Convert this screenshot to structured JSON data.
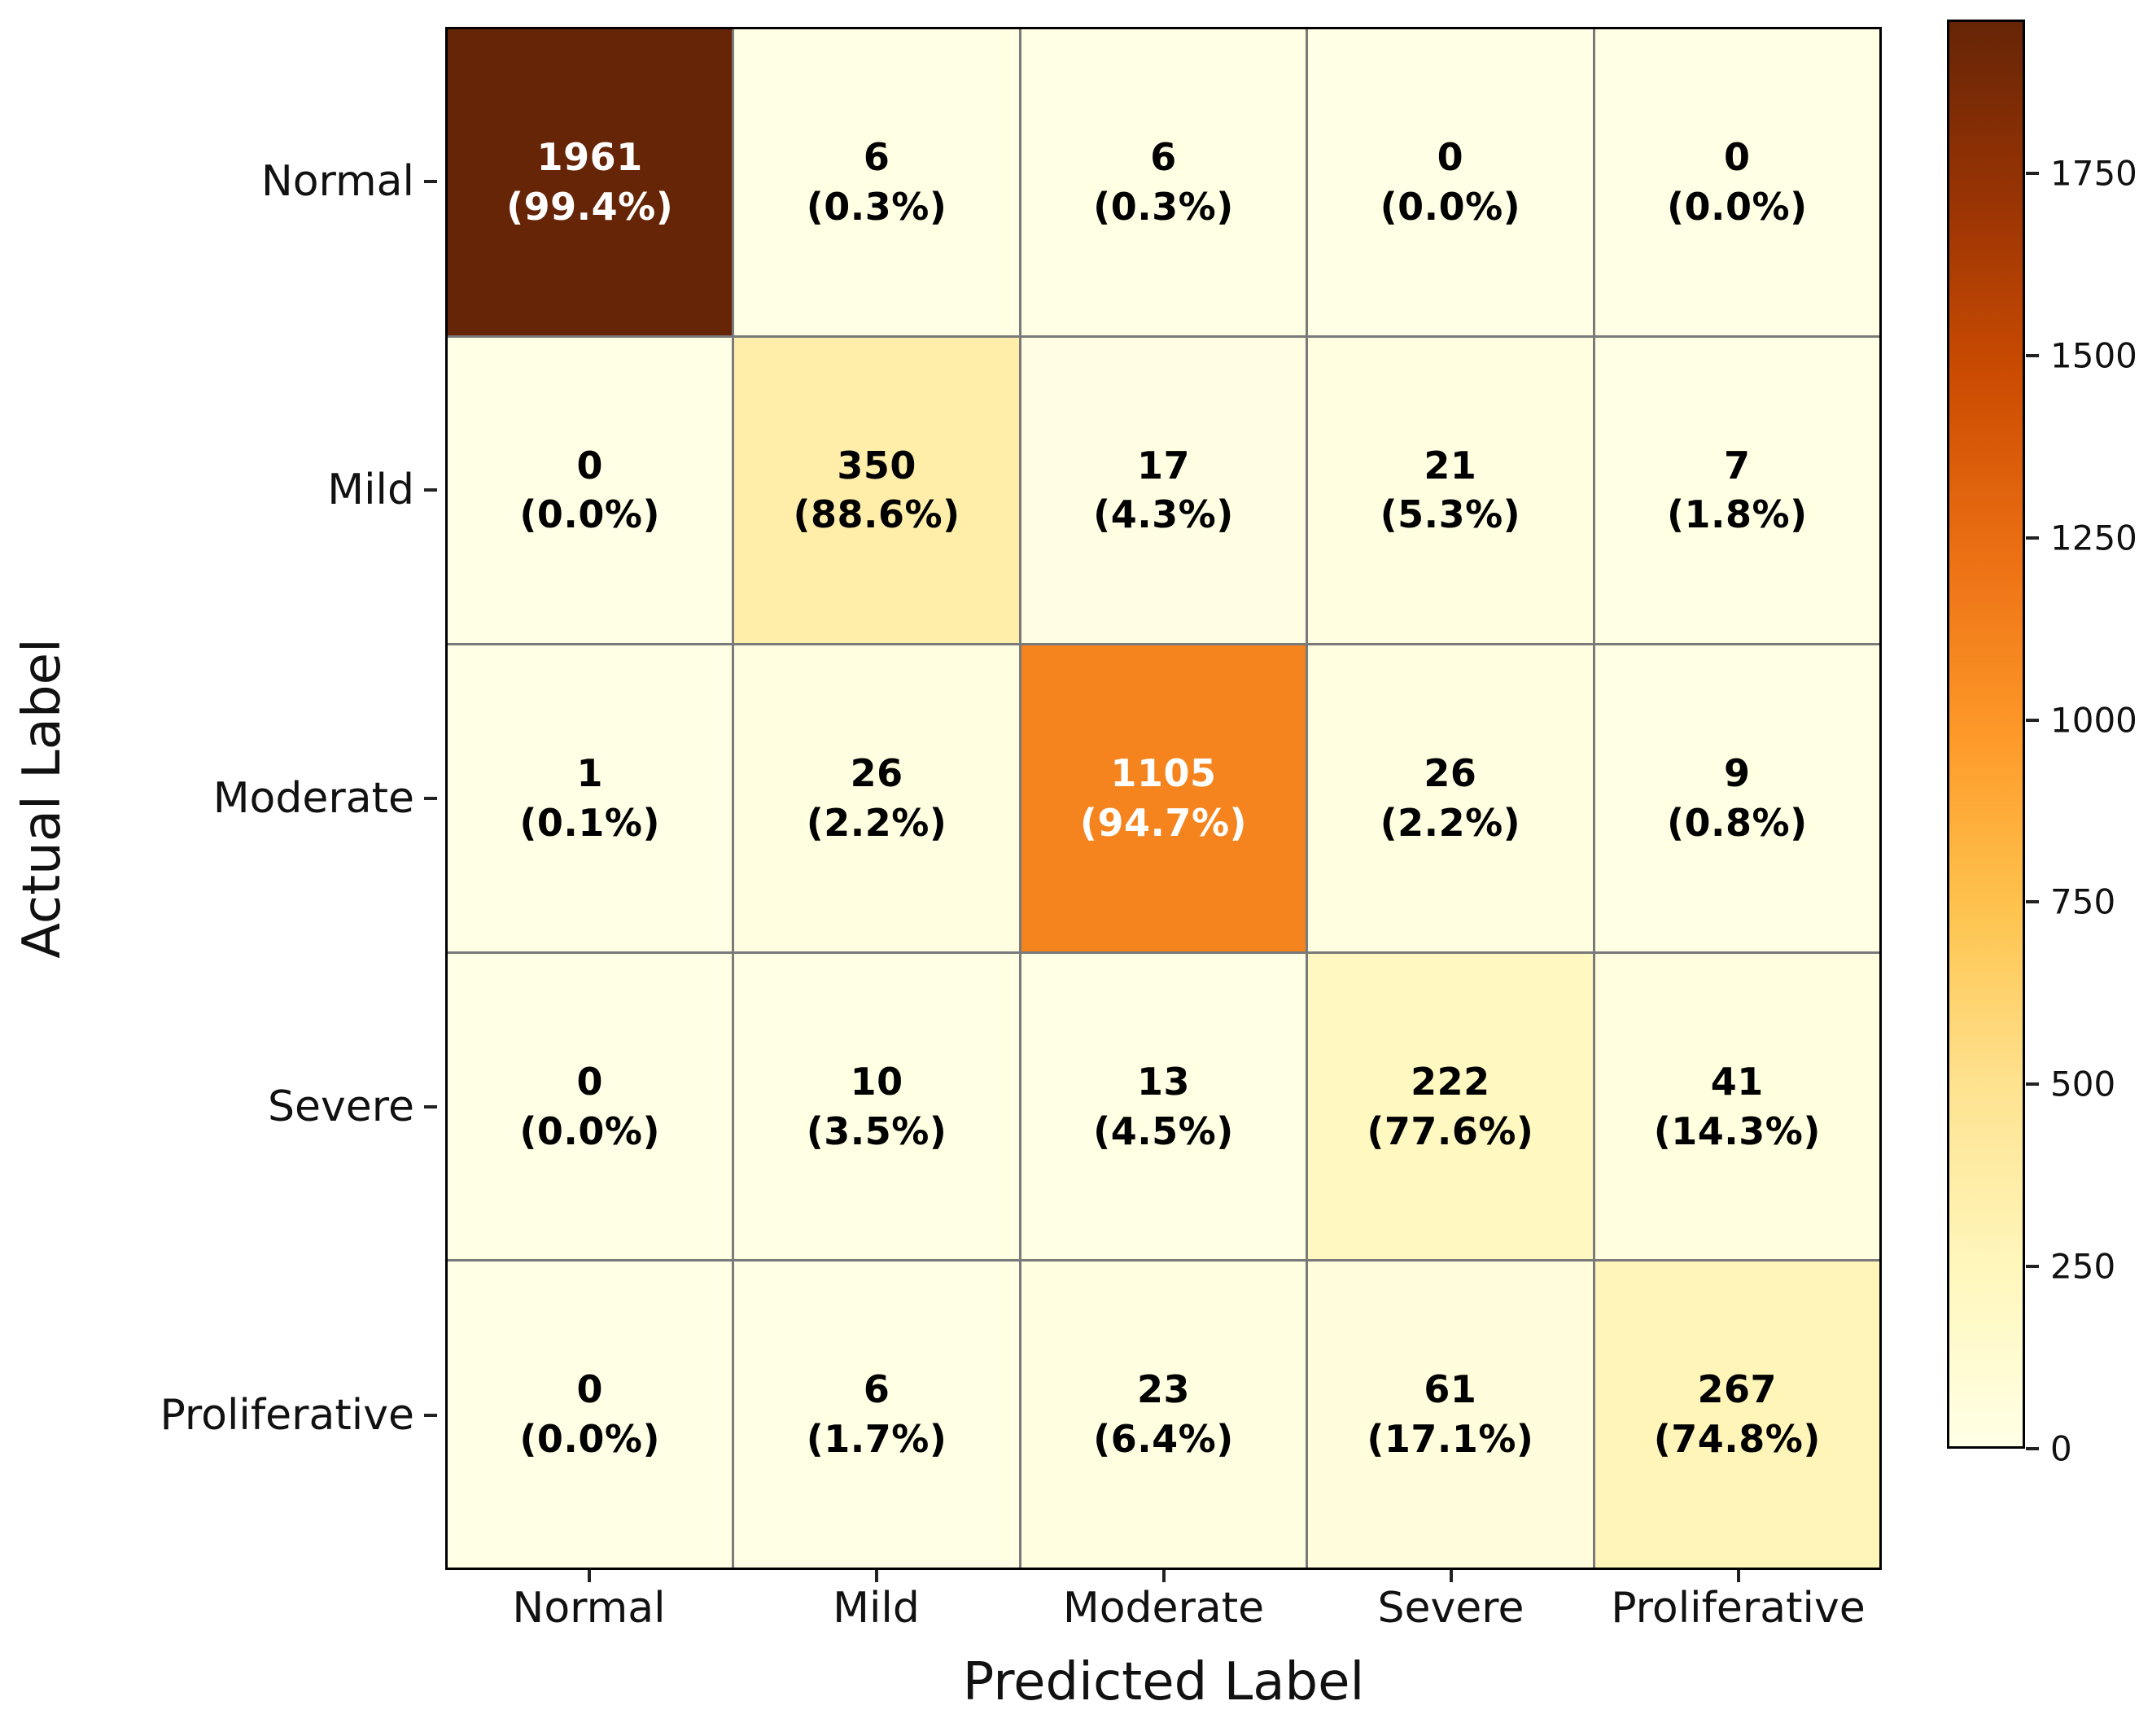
{
  "chart_data": {
    "type": "heatmap",
    "title": "",
    "xlabel": "Predicted Label",
    "ylabel": "Actual Label",
    "categories": [
      "Normal",
      "Mild",
      "Moderate",
      "Severe",
      "Proliferative"
    ],
    "rows": [
      {
        "label": "Normal",
        "counts": [
          1961,
          6,
          6,
          0,
          0
        ],
        "percents": [
          "99.4",
          "0.3",
          "0.3",
          "0.0",
          "0.0"
        ]
      },
      {
        "label": "Mild",
        "counts": [
          0,
          350,
          17,
          21,
          7
        ],
        "percents": [
          "0.0",
          "88.6",
          "4.3",
          "5.3",
          "1.8"
        ]
      },
      {
        "label": "Moderate",
        "counts": [
          1,
          26,
          1105,
          26,
          9
        ],
        "percents": [
          "0.1",
          "2.2",
          "94.7",
          "2.2",
          "0.8"
        ]
      },
      {
        "label": "Severe",
        "counts": [
          0,
          10,
          13,
          222,
          41
        ],
        "percents": [
          "0.0",
          "3.5",
          "4.5",
          "77.6",
          "14.3"
        ]
      },
      {
        "label": "Proliferative",
        "counts": [
          0,
          6,
          23,
          61,
          267
        ],
        "percents": [
          "0.0",
          "1.7",
          "6.4",
          "17.1",
          "74.8"
        ]
      }
    ],
    "value_range": {
      "vmin": 0,
      "vmax": 1961
    },
    "colorbar_ticks": [
      0,
      250,
      500,
      750,
      1000,
      1250,
      1500,
      1750
    ],
    "colormap_stops": [
      "#ffffe5",
      "#fff7bc",
      "#fee391",
      "#fec44f",
      "#fe9929",
      "#ec7014",
      "#cc4c02",
      "#993404",
      "#662506"
    ],
    "gridline_color": "#7a7a7a",
    "cell_text_dark": "#000000",
    "cell_text_light": "#ffffff",
    "legend_position": "right",
    "grid": "on"
  }
}
